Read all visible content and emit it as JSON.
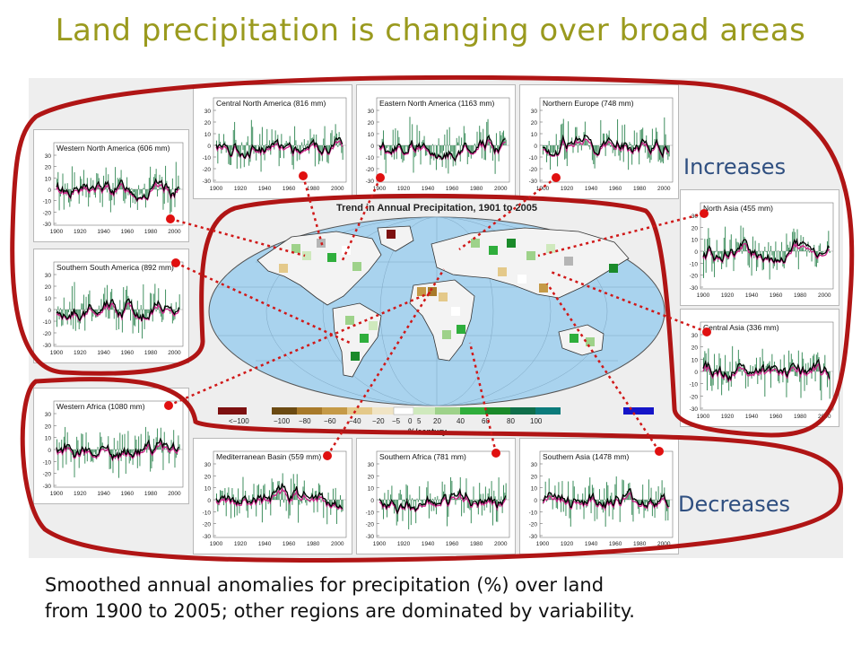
{
  "title": "Land precipitation is changing over broad areas",
  "labels": {
    "increases": "Increases",
    "decreases": "Decreases"
  },
  "caption": {
    "line1": "Smoothed annual anomalies for precipitation (%) over land",
    "line2": "from 1900 to 2005; other regions are dominated by variability."
  },
  "map": {
    "title": "Trend in Annual Precipitation, 1901 to 2005",
    "unit": "%/century",
    "legend_labels": [
      "<−100",
      "−100",
      "−80",
      "−60",
      "−40",
      "−20",
      "−5",
      "0",
      "5",
      "20",
      "40",
      "60",
      "80",
      "100"
    ]
  },
  "colors": {
    "title": "#9a9a1e",
    "ellipse": "#b01515",
    "marker": "#e01010",
    "bar": "#3f8f5f",
    "pink": "#cc2288",
    "black": "#000000",
    "ocean": "#a9d3ee"
  },
  "chart_data": [
    {
      "type": "bar",
      "title": "Western North America (606 mm)",
      "xlim": [
        1900,
        2005
      ],
      "ylim": [
        -30,
        30
      ],
      "xticks": [
        "1900",
        "1920",
        "1940",
        "1960",
        "1980",
        "2000"
      ],
      "yticks": [
        "30",
        "20",
        "10",
        "0",
        "-10",
        "-20",
        "-30"
      ]
    },
    {
      "type": "bar",
      "title": "Central North America (816 mm)",
      "xlim": [
        1900,
        2005
      ],
      "ylim": [
        -30,
        30
      ],
      "xticks": [
        "1900",
        "1920",
        "1940",
        "1960",
        "1980",
        "2000"
      ],
      "yticks": [
        "30",
        "20",
        "10",
        "0",
        "-10",
        "-20",
        "-30"
      ]
    },
    {
      "type": "bar",
      "title": "Eastern North America (1163 mm)",
      "xlim": [
        1900,
        2005
      ],
      "ylim": [
        -30,
        30
      ],
      "xticks": [
        "1900",
        "1920",
        "1940",
        "1960",
        "1980",
        "2000"
      ],
      "yticks": [
        "30",
        "20",
        "10",
        "0",
        "-10",
        "-20",
        "-30"
      ]
    },
    {
      "type": "bar",
      "title": "Northern Europe (748 mm)",
      "xlim": [
        1900,
        2005
      ],
      "ylim": [
        -30,
        30
      ],
      "xticks": [
        "1900",
        "1920",
        "1940",
        "1960",
        "1980",
        "2000"
      ],
      "yticks": [
        "30",
        "20",
        "10",
        "0",
        "-10",
        "-20",
        "-30"
      ]
    },
    {
      "type": "bar",
      "title": "Southern South America (892 mm)",
      "xlim": [
        1900,
        2005
      ],
      "ylim": [
        -30,
        30
      ],
      "xticks": [
        "1900",
        "1920",
        "1940",
        "1960",
        "1980",
        "2000"
      ],
      "yticks": [
        "30",
        "20",
        "10",
        "0",
        "-10",
        "-20",
        "-30"
      ]
    },
    {
      "type": "bar",
      "title": "North Asia (455 mm)",
      "xlim": [
        1900,
        2005
      ],
      "ylim": [
        -30,
        30
      ],
      "xticks": [
        "1900",
        "1920",
        "1940",
        "1960",
        "1980",
        "2000"
      ],
      "yticks": [
        "30",
        "20",
        "10",
        "0",
        "-10",
        "-20",
        "-30"
      ]
    },
    {
      "type": "bar",
      "title": "Central Asia (336 mm)",
      "xlim": [
        1900,
        2005
      ],
      "ylim": [
        -30,
        30
      ],
      "xticks": [
        "1900",
        "1920",
        "1940",
        "1960",
        "1980",
        "2000"
      ],
      "yticks": [
        "30",
        "20",
        "10",
        "0",
        "-10",
        "-20",
        "-30"
      ]
    },
    {
      "type": "bar",
      "title": "Western Africa (1080 mm)",
      "xlim": [
        1900,
        2005
      ],
      "ylim": [
        -30,
        30
      ],
      "xticks": [
        "1900",
        "1920",
        "1940",
        "1960",
        "1980",
        "2000"
      ],
      "yticks": [
        "30",
        "20",
        "10",
        "0",
        "-10",
        "-20",
        "-30"
      ]
    },
    {
      "type": "bar",
      "title": "Mediterranean Basin (559 mm)",
      "xlim": [
        1900,
        2005
      ],
      "ylim": [
        -30,
        30
      ],
      "xticks": [
        "1900",
        "1920",
        "1940",
        "1960",
        "1980",
        "2000"
      ],
      "yticks": [
        "30",
        "20",
        "10",
        "0",
        "-10",
        "-20",
        "-30"
      ]
    },
    {
      "type": "bar",
      "title": "Southern Africa (781 mm)",
      "xlim": [
        1900,
        2005
      ],
      "ylim": [
        -30,
        30
      ],
      "xticks": [
        "1900",
        "1920",
        "1940",
        "1960",
        "1980",
        "2000"
      ],
      "yticks": [
        "30",
        "20",
        "10",
        "0",
        "-10",
        "-20",
        "-30"
      ]
    },
    {
      "type": "bar",
      "title": "Southern Asia (1478 mm)",
      "xlim": [
        1900,
        2005
      ],
      "ylim": [
        -30,
        30
      ],
      "xticks": [
        "1900",
        "1920",
        "1940",
        "1960",
        "1980",
        "2000"
      ],
      "yticks": [
        "30",
        "20",
        "10",
        "0",
        "-10",
        "-20",
        "-30"
      ]
    }
  ]
}
